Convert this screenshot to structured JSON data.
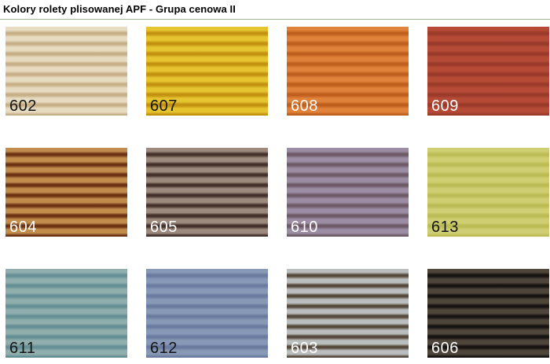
{
  "page": {
    "title": "Kolory rolety plisowanej APF - Grupa cenowa II",
    "divider_color": "#a3b48f",
    "background_color": "#ffffff"
  },
  "swatches": [
    {
      "code": "602",
      "light": "#e7dcc1",
      "dark": "#c7ae86",
      "label_color": "dark"
    },
    {
      "code": "607",
      "light": "#e6c42f",
      "dark": "#c29110",
      "label_color": "dark"
    },
    {
      "code": "608",
      "light": "#e0823a",
      "dark": "#bf5e1d",
      "label_color": "light"
    },
    {
      "code": "609",
      "light": "#b54b37",
      "dark": "#9b3a2a",
      "label_color": "light"
    },
    {
      "code": "604",
      "light": "#c08d4c",
      "dark": "#6b3113",
      "label_color": "light"
    },
    {
      "code": "605",
      "light": "#9c8a7e",
      "dark": "#42302a",
      "label_color": "light"
    },
    {
      "code": "610",
      "light": "#9c8da4",
      "dark": "#6d5a66",
      "label_color": "light"
    },
    {
      "code": "613",
      "light": "#d0ce73",
      "dark": "#bbbc55",
      "label_color": "dark"
    },
    {
      "code": "611",
      "light": "#90aeae",
      "dark": "#648f94",
      "label_color": "dark"
    },
    {
      "code": "612",
      "light": "#8899b8",
      "dark": "#6a7b9f",
      "label_color": "dark"
    },
    {
      "code": "603",
      "light": "#babebe",
      "dark": "#55483a",
      "label_color": "light"
    },
    {
      "code": "606",
      "light": "#4e453b",
      "dark": "#161310",
      "label_color": "light"
    }
  ]
}
